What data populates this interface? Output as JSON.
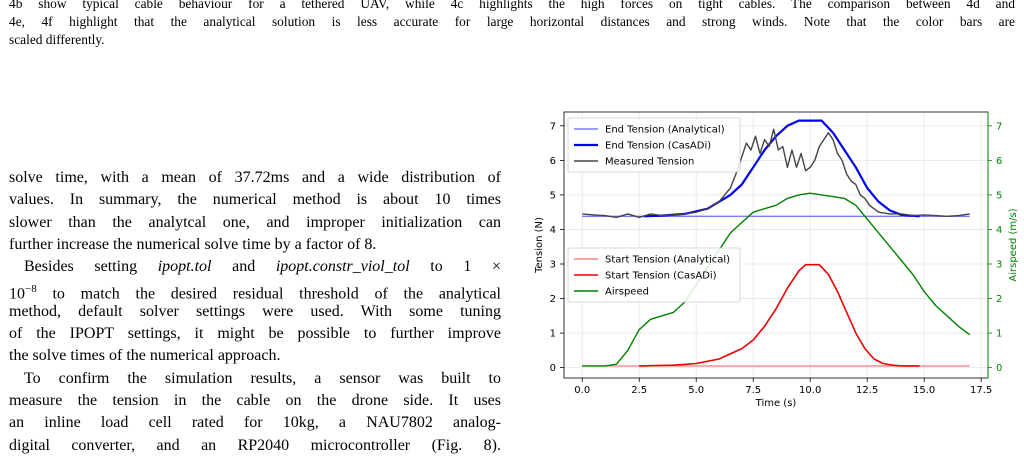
{
  "caption": {
    "line1": "4b show typical cable behaviour for a tethered UAV, while 4c highlights the high forces on tight cables. The comparison between 4d and",
    "line2": "4e, 4f highlight that the analytical solution is less accurate for large horizontal distances and strong winds. Note that the color bars are",
    "line3": "scaled differently."
  },
  "body": {
    "lines": [
      "solve time, with a mean of 37.72ms and a wide distribution of",
      "values. In summary, the numerical method is about 10 times",
      "slower than the analytcal one, and improper initialization can",
      "further increase the numerical solve time by a factor of 8."
    ],
    "p2_pre": "Besides setting ",
    "p2_i1": "ipopt.tol",
    "p2_and": " and ",
    "p2_i2": "ipopt.constr_viol_tol",
    "p2_to": " to 1 ×",
    "p2_exp_base": "10",
    "p2_exp": "−8",
    "p2_rest": " to match the desired residual threshold of the analytical",
    "p2_lines": [
      "method, default solver settings were used. With some tuning",
      "of the IPOPT settings, it might be possible to further improve",
      "the solve times of the numerical approach."
    ],
    "p3_lines": [
      "To confirm the simulation results, a sensor was built to",
      "measure the tension in the cable on the drone side. It uses",
      "an inline load cell rated for 10kg, a NAU7802 analog-",
      "digital converter, and an RP2040 microcontroller (Fig. 8)."
    ]
  },
  "chart_data": {
    "type": "line",
    "xlabel": "Time (s)",
    "ylabel": "Tension (N)",
    "y2label": "Airspeed (m/s)",
    "xlim": [
      -0.8,
      17.8
    ],
    "ylim": [
      -0.3,
      7.4
    ],
    "y2lim": [
      -0.3,
      7.4
    ],
    "xticks": [
      0.0,
      2.5,
      5.0,
      7.5,
      10.0,
      12.5,
      15.0,
      17.5
    ],
    "xtick_labels": [
      "0.0",
      "2.5",
      "5.0",
      "7.5",
      "10.0",
      "12.5",
      "15.0",
      "17.5"
    ],
    "yticks": [
      0,
      1,
      2,
      3,
      4,
      5,
      6,
      7
    ],
    "ytick_labels": [
      "0",
      "1",
      "2",
      "3",
      "4",
      "5",
      "6",
      "7"
    ],
    "y2ticks": [
      0,
      1,
      2,
      3,
      4,
      5,
      6,
      7
    ],
    "y2tick_labels": [
      "0",
      "1",
      "2",
      "3",
      "4",
      "5",
      "6",
      "7"
    ],
    "grid": true,
    "legend_top": "top-left",
    "legend_bottom": "center-left",
    "colors": {
      "end_analytical": "#7b7bf0",
      "end_casadi": "#0000ee",
      "measured": "#444444",
      "start_analytical": "#f08a8a",
      "start_casadi": "#ee0000",
      "airspeed": "#008000",
      "y2axis": "#008000"
    },
    "series": [
      {
        "name": "End Tension (Analytical)",
        "key": "end_analytical",
        "legend": "top",
        "x": [
          0,
          2,
          4,
          6,
          8,
          10,
          12,
          14,
          17
        ],
        "y": [
          4.38,
          4.38,
          4.38,
          4.38,
          4.38,
          4.38,
          4.38,
          4.38,
          4.38
        ]
      },
      {
        "name": "End Tension (CasADi)",
        "key": "end_casadi",
        "legend": "top",
        "x": [
          2.7,
          3.5,
          4.5,
          5.5,
          6.5,
          7.0,
          7.5,
          8.0,
          8.5,
          9.0,
          9.5,
          9.8,
          10.5,
          11.0,
          11.5,
          12.0,
          12.5,
          13.0,
          13.5,
          14.0,
          14.8
        ],
        "y": [
          4.38,
          4.4,
          4.45,
          4.6,
          5.0,
          5.3,
          5.8,
          6.3,
          6.7,
          7.0,
          7.15,
          7.15,
          7.15,
          6.8,
          6.3,
          5.8,
          5.2,
          4.8,
          4.55,
          4.42,
          4.38
        ]
      },
      {
        "name": "Measured Tension",
        "key": "measured",
        "legend": "top",
        "x": [
          0,
          0.5,
          1,
          1.5,
          2,
          2.5,
          3,
          3.5,
          4,
          4.5,
          5,
          5.5,
          6,
          6.5,
          6.8,
          7.0,
          7.2,
          7.4,
          7.6,
          7.8,
          8.0,
          8.2,
          8.4,
          8.6,
          8.8,
          9.0,
          9.2,
          9.4,
          9.6,
          9.8,
          10.0,
          10.2,
          10.4,
          10.6,
          10.8,
          11.0,
          11.2,
          11.4,
          11.6,
          11.8,
          12.0,
          12.2,
          12.4,
          12.6,
          12.8,
          13.0,
          13.5,
          14.0,
          14.5,
          15.0,
          15.5,
          16.0,
          16.5,
          17.0
        ],
        "y": [
          4.45,
          4.42,
          4.4,
          4.35,
          4.45,
          4.35,
          4.45,
          4.4,
          4.42,
          4.45,
          4.5,
          4.6,
          4.8,
          5.2,
          5.7,
          6.1,
          6.5,
          6.3,
          6.7,
          6.2,
          6.6,
          6.4,
          6.9,
          6.3,
          6.4,
          5.8,
          6.3,
          5.8,
          6.2,
          5.7,
          5.8,
          6.0,
          6.4,
          6.6,
          6.8,
          6.6,
          6.2,
          6.0,
          5.6,
          5.4,
          5.3,
          5.0,
          4.9,
          4.7,
          4.6,
          4.5,
          4.45,
          4.45,
          4.4,
          4.42,
          4.4,
          4.38,
          4.4,
          4.45
        ]
      },
      {
        "name": "Start Tension (Analytical)",
        "key": "start_analytical",
        "legend": "bottom",
        "x": [
          0,
          2,
          4,
          6,
          8,
          10,
          12,
          14,
          17
        ],
        "y": [
          0.05,
          0.05,
          0.05,
          0.05,
          0.05,
          0.05,
          0.05,
          0.05,
          0.05
        ]
      },
      {
        "name": "Start Tension (CasADi)",
        "key": "start_casadi",
        "legend": "bottom",
        "x": [
          2.5,
          4.0,
          5.0,
          6.0,
          7.0,
          7.5,
          8.0,
          8.5,
          9.0,
          9.5,
          9.8,
          10.4,
          10.8,
          11.2,
          11.6,
          12.0,
          12.4,
          12.8,
          13.2,
          13.6,
          14.0,
          14.8
        ],
        "y": [
          0.05,
          0.07,
          0.12,
          0.25,
          0.55,
          0.8,
          1.2,
          1.7,
          2.3,
          2.8,
          2.98,
          2.98,
          2.7,
          2.2,
          1.6,
          1.0,
          0.55,
          0.25,
          0.12,
          0.07,
          0.05,
          0.05
        ]
      },
      {
        "name": "Airspeed",
        "key": "airspeed",
        "legend": "bottom",
        "axis": "y2",
        "x": [
          0,
          0.5,
          1,
          1.5,
          2,
          2.5,
          3,
          3.5,
          4,
          4.5,
          5,
          5.5,
          6,
          6.5,
          7,
          7.5,
          8,
          8.5,
          9,
          9.5,
          10,
          10.5,
          11,
          11.5,
          12,
          12.5,
          13,
          13.5,
          14,
          14.5,
          15,
          15.5,
          16,
          16.5,
          17
        ],
        "y": [
          0.05,
          0.05,
          0.05,
          0.1,
          0.5,
          1.1,
          1.4,
          1.5,
          1.6,
          1.9,
          2.4,
          2.9,
          3.4,
          3.9,
          4.2,
          4.5,
          4.6,
          4.7,
          4.9,
          5.0,
          5.05,
          5.0,
          4.95,
          4.9,
          4.7,
          4.3,
          3.9,
          3.5,
          3.1,
          2.7,
          2.2,
          1.8,
          1.5,
          1.2,
          0.95
        ]
      }
    ]
  }
}
